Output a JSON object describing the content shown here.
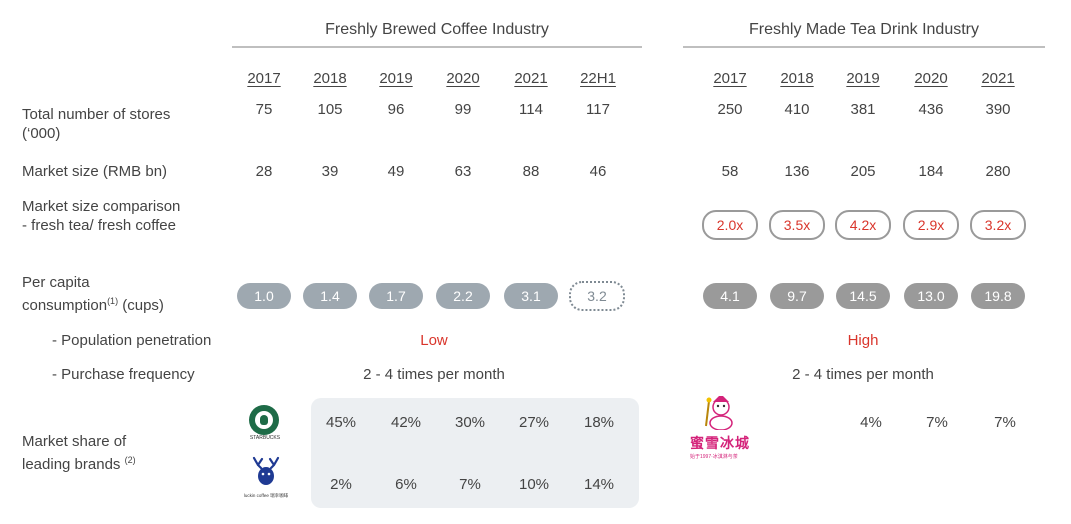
{
  "headers": {
    "coffee": "Freshly Brewed Coffee Industry",
    "tea": "Freshly Made Tea Drink Industry"
  },
  "coffee_years": [
    "2017",
    "2018",
    "2019",
    "2020",
    "2021",
    "22H1"
  ],
  "tea_years": [
    "2017",
    "2018",
    "2019",
    "2020",
    "2021"
  ],
  "rows": {
    "stores": {
      "label_line1": "Total number of stores",
      "label_line2": "(‘000)",
      "coffee": [
        "75",
        "105",
        "96",
        "99",
        "114",
        "117"
      ],
      "tea": [
        "250",
        "410",
        "381",
        "436",
        "390"
      ]
    },
    "market_size": {
      "label": "Market size (RMB bn)",
      "coffee": [
        "28",
        "39",
        "49",
        "63",
        "88",
        "46"
      ],
      "tea": [
        "58",
        "136",
        "205",
        "184",
        "280"
      ]
    },
    "comparison": {
      "label_line1": "Market size comparison",
      "label_line2": "- fresh tea/ fresh coffee",
      "tea": [
        "2.0x",
        "3.5x",
        "4.2x",
        "2.9x",
        "3.2x"
      ]
    },
    "per_capita": {
      "label_line1": "Per capita",
      "label_line2_pre": "consumption",
      "label_sup": "(1)",
      "label_line2_post": " (cups)",
      "coffee": [
        "1.0",
        "1.4",
        "1.7",
        "2.2",
        "3.1",
        "3.2"
      ],
      "tea": [
        "4.1",
        "9.7",
        "14.5",
        "13.0",
        "19.8"
      ]
    },
    "penetration": {
      "label": "- Population penetration",
      "coffee": "Low",
      "tea": "High"
    },
    "frequency": {
      "label": "- Purchase frequency",
      "coffee": "2 - 4 times per month",
      "tea": "2 - 4 times per month"
    },
    "market_share": {
      "label_line1": "Market share of",
      "label_line2": "leading brands",
      "label_sup": "(2)",
      "starbucks_logo_text": "STARBUCKS",
      "luckin_logo_text": "luckin coffee 瑞幸咖啡",
      "mixue_logo_text": "蜜雪冰城",
      "mixue_logo_sub": "始于1997·冰淇淋与茶",
      "starbucks": [
        "45%",
        "42%",
        "30%",
        "27%",
        "18%"
      ],
      "luckin": [
        "2%",
        "6%",
        "7%",
        "10%",
        "14%"
      ],
      "mixue": [
        "4%",
        "7%",
        "7%"
      ]
    }
  },
  "colors": {
    "accent_red": "#d9352b",
    "coffee_pill": "#9ea8b0",
    "tea_pill": "#9a9a9a",
    "starbucks_green": "#1e6b47",
    "mixue_pink": "#d4237a",
    "share_box": "#eceff2"
  }
}
